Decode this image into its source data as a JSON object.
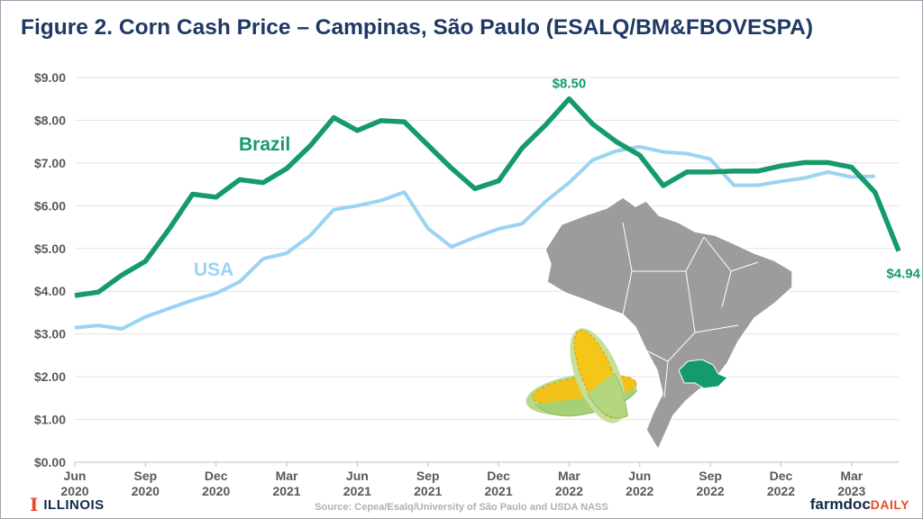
{
  "title": "Figure 2. Corn Cash Price – Campinas, São Paulo (ESALQ/BM&FBOVESPA)",
  "footer": {
    "logo_mark": "I",
    "logo_text": "ILLINOIS",
    "source": "Source: Cepea/Esalq/University  of São Paulo and USDA NASS",
    "brand_a": "farmdoc",
    "brand_b": "DAILY"
  },
  "colors": {
    "brazil": "#159a6b",
    "usa": "#9bd3f2",
    "map_fill": "#9c9c9c",
    "map_highlight": "#159a6b",
    "title": "#1f3864"
  },
  "icons": [
    "brazil-map-icon",
    "sao-paulo-state-icon",
    "corn-cob-icon"
  ],
  "chart_data": {
    "type": "line",
    "title": "Figure 2. Corn Cash Price – Campinas, São Paulo (ESALQ/BM&FBOVESPA)",
    "xlabel": "",
    "ylabel": "",
    "ylim": [
      0,
      9
    ],
    "yticks": [
      "$0.00",
      "$1.00",
      "$2.00",
      "$3.00",
      "$4.00",
      "$5.00",
      "$6.00",
      "$7.00",
      "$8.00",
      "$9.00"
    ],
    "xticks": [
      {
        "month": "Jun",
        "year": "2020",
        "date": "2020-06"
      },
      {
        "month": "Sep",
        "year": "2020",
        "date": "2020-09"
      },
      {
        "month": "Dec",
        "year": "2020",
        "date": "2020-12"
      },
      {
        "month": "Mar",
        "year": "2021",
        "date": "2021-03"
      },
      {
        "month": "Jun",
        "year": "2021",
        "date": "2021-06"
      },
      {
        "month": "Sep",
        "year": "2021",
        "date": "2021-09"
      },
      {
        "month": "Dec",
        "year": "2021",
        "date": "2021-12"
      },
      {
        "month": "Mar",
        "year": "2022",
        "date": "2022-03"
      },
      {
        "month": "Jun",
        "year": "2022",
        "date": "2022-06"
      },
      {
        "month": "Sep",
        "year": "2022",
        "date": "2022-09"
      },
      {
        "month": "Dec",
        "year": "2022",
        "date": "2022-12"
      },
      {
        "month": "Mar",
        "year": "2023",
        "date": "2023-03"
      }
    ],
    "x": [
      "2020-06",
      "2020-07",
      "2020-08",
      "2020-09",
      "2020-10",
      "2020-11",
      "2020-12",
      "2021-01",
      "2021-02",
      "2021-03",
      "2021-04",
      "2021-05",
      "2021-06",
      "2021-07",
      "2021-08",
      "2021-09",
      "2021-10",
      "2021-11",
      "2021-12",
      "2022-01",
      "2022-02",
      "2022-03",
      "2022-04",
      "2022-05",
      "2022-06",
      "2022-07",
      "2022-08",
      "2022-09",
      "2022-10",
      "2022-11",
      "2022-12",
      "2023-01",
      "2023-02",
      "2023-03",
      "2023-04",
      "2023-05"
    ],
    "series": [
      {
        "name": "Brazil",
        "values": [
          3.9,
          3.98,
          4.38,
          4.7,
          5.45,
          6.27,
          6.2,
          6.61,
          6.54,
          6.87,
          7.4,
          8.06,
          7.76,
          7.99,
          7.96,
          7.42,
          6.88,
          6.4,
          6.58,
          7.35,
          7.89,
          8.5,
          7.91,
          7.5,
          7.18,
          6.47,
          6.79,
          6.79,
          6.81,
          6.81,
          6.93,
          7.01,
          7.01,
          6.9,
          6.31,
          4.94
        ]
      },
      {
        "name": "USA",
        "values": [
          3.15,
          3.2,
          3.12,
          3.4,
          3.6,
          3.79,
          3.95,
          4.22,
          4.76,
          4.89,
          5.3,
          5.91,
          6.0,
          6.12,
          6.32,
          5.47,
          5.04,
          5.26,
          5.46,
          5.58,
          6.1,
          6.54,
          7.07,
          7.28,
          7.38,
          7.26,
          7.22,
          7.09,
          6.48,
          6.48,
          6.57,
          6.65,
          6.79,
          6.67,
          6.69,
          null
        ]
      }
    ],
    "annotations": [
      {
        "text": "$8.50",
        "x": "2022-03",
        "y": 8.5,
        "series": "Brazil"
      },
      {
        "text": "$4.94",
        "x": "2023-05",
        "y": 4.94,
        "series": "Brazil"
      }
    ],
    "grid": true
  }
}
